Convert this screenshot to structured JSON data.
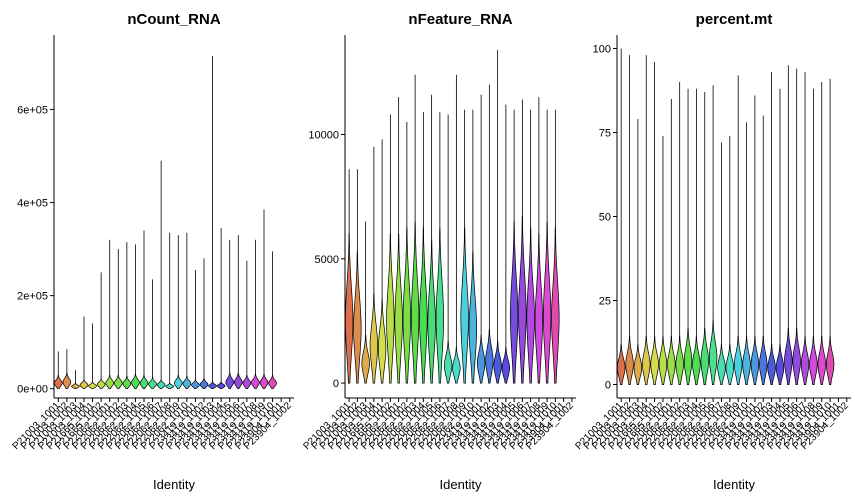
{
  "chart_data": [
    {
      "type": "violin",
      "title": "nCount_RNA",
      "xlabel": "Identity",
      "ylabel": "",
      "ylim": [
        -20000,
        760000
      ],
      "yticks": [
        0,
        200000,
        400000,
        600000
      ],
      "yticklabels": [
        "0e+00",
        "2e+05",
        "4e+05",
        "6e+05"
      ],
      "categories": [
        "P21003_1001",
        "P21003_1002",
        "P21003_1003",
        "P21003_1004",
        "P21665_1001",
        "P21665_1002",
        "P22062_1001",
        "P22062_1002",
        "P22062_1003",
        "P22062_1004",
        "P22062_1005",
        "P22062_1006",
        "P22062_1007",
        "P22062_1008",
        "P22062_1009",
        "P22062_1010",
        "P23419_1001",
        "P23419_1002",
        "P23419_1003",
        "P23419_1004",
        "P23419_1005",
        "P23419_1006",
        "P23419_1007",
        "P23419_1008",
        "P23419_1009",
        "P23419_1010",
        "P23904_1001",
        "P23904_1002"
      ],
      "series": [
        {
          "values": [
            80000,
            85000,
            40000,
            155000,
            140000,
            250000,
            320000,
            300000,
            315000,
            310000,
            340000,
            235000,
            490000,
            335000,
            330000,
            335000,
            255000,
            280000,
            715000,
            345000,
            320000,
            330000,
            275000,
            320000,
            385000,
            295000,
            0,
            0
          ]
        },
        {
          "values": [
            12000,
            14000,
            5000,
            8000,
            6000,
            9000,
            12000,
            12000,
            11000,
            13000,
            12000,
            10000,
            8000,
            5000,
            12000,
            11000,
            8000,
            9000,
            6000,
            6000,
            14000,
            14000,
            12000,
            13000,
            13000,
            12000,
            0,
            0
          ]
        }
      ]
    },
    {
      "type": "violin",
      "title": "nFeature_RNA",
      "xlabel": "Identity",
      "ylabel": "",
      "ylim": [
        -600,
        14000
      ],
      "yticks": [
        0,
        5000,
        10000
      ],
      "yticklabels": [
        "0",
        "5000",
        "10000"
      ],
      "categories": [
        "P21003_1001",
        "P21003_1002",
        "P21003_1003",
        "P21003_1004",
        "P21665_1001",
        "P21665_1002",
        "P22062_1001",
        "P22062_1002",
        "P22062_1003",
        "P22062_1004",
        "P22062_1005",
        "P22062_1006",
        "P22062_1007",
        "P22062_1008",
        "P22062_1009",
        "P22062_1010",
        "P23419_1001",
        "P23419_1002",
        "P23419_1003",
        "P23419_1004",
        "P23419_1005",
        "P23419_1006",
        "P23419_1007",
        "P23419_1008",
        "P23419_1009",
        "P23419_1010",
        "P23904_1001",
        "P23904_1002"
      ],
      "series": [
        {
          "values": [
            8600,
            8600,
            6500,
            9500,
            9800,
            10800,
            11500,
            10500,
            12400,
            10900,
            11600,
            10900,
            10800,
            12400,
            11000,
            11000,
            11600,
            12000,
            13400,
            11200,
            11000,
            11400,
            11000,
            11500,
            11000,
            11000,
            0,
            0
          ]
        },
        {
          "values": [
            2500,
            2200,
            800,
            1500,
            1400,
            2500,
            2500,
            2600,
            2700,
            2600,
            2400,
            2600,
            700,
            600,
            2600,
            2200,
            800,
            900,
            700,
            600,
            2700,
            2800,
            2600,
            2500,
            2700,
            2600,
            0,
            0
          ]
        }
      ]
    },
    {
      "type": "violin",
      "title": "percent.mt",
      "xlabel": "Identity",
      "ylabel": "",
      "ylim": [
        -4,
        104
      ],
      "yticks": [
        0,
        25,
        50,
        75,
        100
      ],
      "yticklabels": [
        "0",
        "25",
        "50",
        "75",
        "100"
      ],
      "categories": [
        "P21003_1001",
        "P21003_1002",
        "P21003_1003",
        "P21003_1004",
        "P21665_1001",
        "P21665_1002",
        "P22062_1001",
        "P22062_1002",
        "P22062_1003",
        "P22062_1004",
        "P22062_1005",
        "P22062_1006",
        "P22062_1007",
        "P22062_1008",
        "P22062_1009",
        "P22062_1010",
        "P23419_1001",
        "P23419_1002",
        "P23419_1003",
        "P23419_1004",
        "P23419_1005",
        "P23419_1006",
        "P23419_1007",
        "P23419_1008",
        "P23419_1009",
        "P23419_1010",
        "P23904_1001",
        "P23904_1002"
      ],
      "series": [
        {
          "values": [
            100,
            98,
            79,
            98,
            96,
            74,
            85,
            90,
            88,
            88,
            87,
            89,
            72,
            74,
            92,
            78,
            86,
            80,
            93,
            88,
            95,
            94,
            93,
            88,
            90,
            91,
            0,
            0
          ]
        },
        {
          "values": [
            5,
            6,
            5,
            6,
            6,
            6,
            6,
            6,
            7,
            6,
            7,
            8,
            5,
            5,
            6,
            6,
            6,
            6,
            5,
            5,
            7,
            7,
            6,
            6,
            6,
            6,
            0,
            0
          ]
        }
      ]
    }
  ]
}
